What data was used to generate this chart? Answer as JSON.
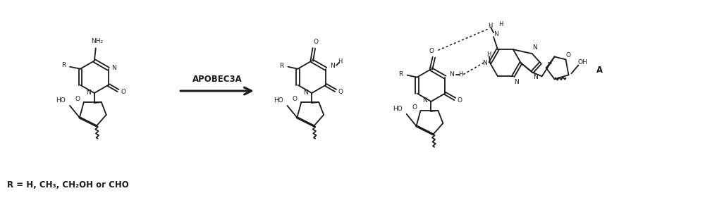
{
  "bg_color": "#ffffff",
  "fig_width": 10.0,
  "fig_height": 2.81,
  "dpi": 100,
  "line_color": "#1a1a1a",
  "lw": 1.3,
  "xlim": [
    0,
    10
  ],
  "ylim": [
    0,
    2.81
  ],
  "arrow_label": "APOBEC3A",
  "bottom_label": "R = H, CH₃, CH₂OH or CHO",
  "label_A": "A"
}
